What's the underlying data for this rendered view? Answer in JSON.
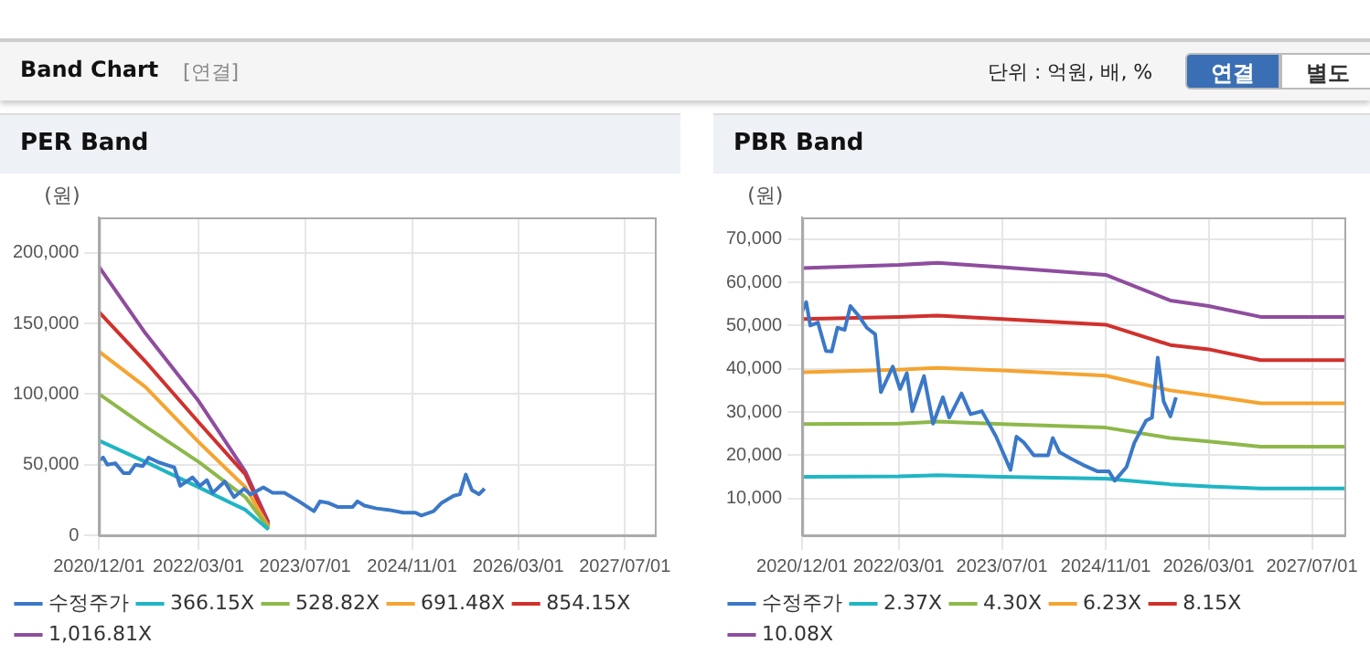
{
  "chart_data": [
    {
      "type": "other",
      "title": "Band Chart",
      "annotations": [
        "[연결]",
        "단위 : 억원, 배, %",
        "연결",
        "별도"
      ]
    },
    {
      "type": "line",
      "title": "PER Band",
      "ylabel": "(원)",
      "xlim": [
        "2020-12-01",
        "2027-11-15"
      ],
      "xticks": [
        {
          "value": "2020-12-01",
          "label": "2020/12/01"
        },
        {
          "value": "2022-03-01",
          "label": "2022/03/01"
        },
        {
          "value": "2023-07-01",
          "label": "2023/07/01"
        },
        {
          "value": "2024-11-01",
          "label": "2024/11/01"
        },
        {
          "value": "2026-03-01",
          "label": "2026/03/01"
        },
        {
          "value": "2027-07-01",
          "label": "2027/07/01"
        }
      ],
      "ylim": [
        0,
        225000
      ],
      "yticks": [
        0,
        {
          "value": 50000,
          "label": "50,000"
        },
        {
          "value": 100000,
          "label": "100,000"
        },
        {
          "value": 150000,
          "label": "150,000"
        },
        {
          "value": 200000,
          "label": "200,000"
        }
      ],
      "grid": true,
      "legend": "bottom",
      "marker": "none",
      "series": [
        {
          "name": "수정주가",
          "color": "#3b78c8",
          "x": [
            "2020-12-01",
            "2020-12-20",
            "2021-01-08",
            "2021-02-13",
            "2021-03-23",
            "2021-04-19",
            "2021-05-16",
            "2021-06-19",
            "2021-07-16",
            "2021-08-25",
            "2021-10-01",
            "2021-11-10",
            "2021-12-07",
            "2022-02-01",
            "2022-03-07",
            "2022-04-08",
            "2022-05-04",
            "2022-06-28",
            "2022-08-10",
            "2022-09-25",
            "2022-10-25",
            "2022-12-22",
            "2023-02-03",
            "2023-03-28",
            "2023-06-03",
            "2023-08-10",
            "2023-09-07",
            "2023-10-13",
            "2023-11-28",
            "2024-02-03",
            "2024-02-25",
            "2024-03-28",
            "2024-05-22",
            "2024-07-16",
            "2024-09-22",
            "2024-11-16",
            "2024-12-13",
            "2025-02-07",
            "2025-03-16",
            "2025-05-10",
            "2025-06-07",
            "2025-07-04",
            "2025-08-01",
            "2025-09-02",
            "2025-09-28"
          ],
          "values": [
            53000,
            55000,
            50000,
            51000,
            44000,
            44000,
            50000,
            49000,
            55000,
            52000,
            50000,
            48000,
            35000,
            41000,
            35000,
            39000,
            30000,
            38000,
            27000,
            33000,
            29000,
            34000,
            30000,
            30000,
            24000,
            17000,
            24000,
            23000,
            20000,
            20000,
            24000,
            21000,
            19000,
            18000,
            16000,
            16000,
            14000,
            17000,
            23000,
            28000,
            29000,
            43000,
            32000,
            29000,
            33000
          ]
        },
        {
          "name": "366.15X",
          "color": "#1fb5c4",
          "x": [
            "2020-12-01",
            "2021-07-01",
            "2022-03-01",
            "2022-10-01",
            "2023-01-15"
          ],
          "values": [
            67000,
            52000,
            34000,
            18000,
            4000
          ]
        },
        {
          "name": "528.82X",
          "color": "#8db84a",
          "x": [
            "2020-12-01",
            "2021-07-01",
            "2022-03-01",
            "2022-10-01",
            "2023-01-15"
          ],
          "values": [
            100000,
            77000,
            52000,
            27000,
            5000
          ]
        },
        {
          "name": "691.48X",
          "color": "#f5a431",
          "x": [
            "2020-12-01",
            "2021-07-01",
            "2022-03-01",
            "2022-10-01",
            "2023-01-15"
          ],
          "values": [
            130000,
            105000,
            66000,
            34000,
            6000
          ]
        },
        {
          "name": "854.15X",
          "color": "#d0312d",
          "x": [
            "2020-12-01",
            "2021-07-01",
            "2022-03-01",
            "2022-10-01",
            "2023-01-15"
          ],
          "values": [
            158000,
            123000,
            80000,
            43000,
            7000
          ]
        },
        {
          "name": "1,016.81X",
          "color": "#8e4d9e",
          "x": [
            "2020-12-01",
            "2021-07-01",
            "2022-03-01",
            "2022-10-01",
            "2023-01-15"
          ],
          "values": [
            190000,
            143000,
            95000,
            45000,
            9000
          ]
        }
      ]
    },
    {
      "type": "line",
      "title": "PBR Band",
      "ylabel": "(원)",
      "xlim": [
        "2020-12-01",
        "2027-12-01"
      ],
      "xticks": [
        {
          "value": "2020-12-01",
          "label": "2020/12/01"
        },
        {
          "value": "2022-03-01",
          "label": "2022/03/01"
        },
        {
          "value": "2023-07-01",
          "label": "2023/07/01"
        },
        {
          "value": "2024-11-01",
          "label": "2024/11/01"
        },
        {
          "value": "2026-03-01",
          "label": "2026/03/01"
        },
        {
          "value": "2027-07-01",
          "label": "2027/07/01"
        }
      ],
      "ylim": [
        1500,
        75000
      ],
      "yticks": [
        {
          "value": 10000,
          "label": "10,000"
        },
        {
          "value": 20000,
          "label": "20,000"
        },
        {
          "value": 30000,
          "label": "30,000"
        },
        {
          "value": 40000,
          "label": "40,000"
        },
        {
          "value": 50000,
          "label": "50,000"
        },
        {
          "value": 60000,
          "label": "60,000"
        },
        {
          "value": 70000,
          "label": "70,000"
        }
      ],
      "grid": true,
      "legend": "bottom",
      "marker": "none",
      "series": [
        {
          "name": "수정주가",
          "color": "#3b78c8",
          "x": [
            "2020-12-01",
            "2020-12-20",
            "2021-01-08",
            "2021-02-13",
            "2021-03-23",
            "2021-04-19",
            "2021-05-16",
            "2021-06-19",
            "2021-07-16",
            "2021-08-25",
            "2021-10-01",
            "2021-11-10",
            "2021-12-07",
            "2022-02-01",
            "2022-03-07",
            "2022-04-08",
            "2022-05-04",
            "2022-06-28",
            "2022-08-10",
            "2022-09-25",
            "2022-10-25",
            "2022-12-22",
            "2023-02-03",
            "2023-03-28",
            "2023-06-03",
            "2023-08-10",
            "2023-09-07",
            "2023-10-13",
            "2023-11-28",
            "2024-02-03",
            "2024-02-25",
            "2024-03-28",
            "2024-05-22",
            "2024-07-16",
            "2024-09-22",
            "2024-11-16",
            "2024-12-13",
            "2025-02-07",
            "2025-03-16",
            "2025-05-10",
            "2025-06-07",
            "2025-07-04",
            "2025-08-01",
            "2025-09-02",
            "2025-09-28"
          ],
          "values": [
            53300,
            55400,
            50000,
            50700,
            44100,
            44000,
            49500,
            49000,
            54500,
            52200,
            49500,
            48000,
            34600,
            40500,
            35300,
            39000,
            30200,
            38300,
            27300,
            33400,
            28700,
            34300,
            29500,
            30200,
            24300,
            16600,
            24300,
            22900,
            20000,
            20000,
            24000,
            20700,
            19200,
            17800,
            16300,
            16300,
            14100,
            17300,
            22900,
            28000,
            28700,
            42600,
            32400,
            29000,
            33400
          ]
        },
        {
          "name": "2.37X",
          "color": "#1fb5c4",
          "x": [
            "2020-12-01",
            "2022-03-01",
            "2022-09-01",
            "2023-07-01",
            "2024-11-01",
            "2025-09-01",
            "2026-03-01",
            "2026-11-01",
            "2027-12-01"
          ],
          "values": [
            15000,
            15100,
            15400,
            15000,
            14600,
            13300,
            12800,
            12300,
            12300
          ]
        },
        {
          "name": "4.30X",
          "color": "#8db84a",
          "x": [
            "2020-12-01",
            "2022-03-01",
            "2022-09-01",
            "2023-07-01",
            "2024-11-01",
            "2025-09-01",
            "2026-03-01",
            "2026-11-01",
            "2027-12-01"
          ],
          "values": [
            27200,
            27300,
            27800,
            27200,
            26400,
            24000,
            23200,
            22000,
            22000
          ]
        },
        {
          "name": "6.23X",
          "color": "#f5a431",
          "x": [
            "2020-12-01",
            "2022-03-01",
            "2022-09-01",
            "2023-07-01",
            "2024-11-01",
            "2025-09-01",
            "2026-03-01",
            "2026-11-01",
            "2027-12-01"
          ],
          "values": [
            39200,
            39800,
            40200,
            39600,
            38400,
            35000,
            33800,
            32000,
            32000
          ]
        },
        {
          "name": "8.15X",
          "color": "#d0312d",
          "x": [
            "2020-12-01",
            "2022-03-01",
            "2022-09-01",
            "2023-07-01",
            "2024-11-01",
            "2025-09-01",
            "2026-03-01",
            "2026-11-01",
            "2027-12-01"
          ],
          "values": [
            51500,
            52000,
            52300,
            51500,
            50200,
            45500,
            44500,
            42000,
            42000
          ]
        },
        {
          "name": "10.08X",
          "color": "#8e4d9e",
          "x": [
            "2020-12-01",
            "2022-03-01",
            "2022-09-01",
            "2023-07-01",
            "2024-11-01",
            "2025-09-01",
            "2026-03-01",
            "2026-11-01",
            "2027-12-01"
          ],
          "values": [
            63300,
            64000,
            64500,
            63500,
            61700,
            55800,
            54500,
            52000,
            52000
          ]
        }
      ]
    }
  ]
}
